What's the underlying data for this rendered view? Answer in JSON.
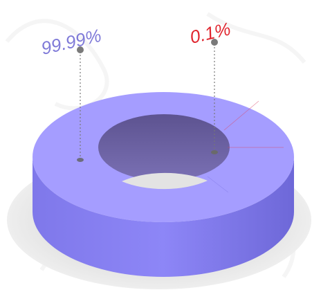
{
  "chart_data": {
    "type": "pie",
    "style": "3d-donut",
    "slices": [
      {
        "value": 99.99,
        "label": "99.99%",
        "color": "#9b95ff",
        "label_color": "#7f7ad8"
      },
      {
        "value": 0.1,
        "label": "0.1%",
        "color": "#d94a6a",
        "label_color": "#e0262f"
      }
    ],
    "shadow_color": "#e3e3e3",
    "hole_color": "#6f5f9e",
    "background_motif": "faint-gray-floral-watermark"
  }
}
